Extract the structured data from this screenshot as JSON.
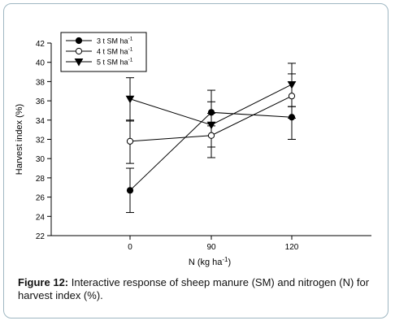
{
  "chart_data": {
    "type": "line",
    "x": [
      0,
      90,
      120
    ],
    "categories": [
      "0",
      "90",
      "120"
    ],
    "ylabel": "Harvest index (%)",
    "xlabel_main": "N (kg ha",
    "xlabel_sup": "-1",
    "xlabel_end": ")",
    "ylim": [
      22,
      42
    ],
    "yticks": [
      22,
      24,
      26,
      28,
      30,
      32,
      34,
      36,
      38,
      40,
      42
    ],
    "legend_position": "top-left",
    "series": [
      {
        "name": "3 t SM ha",
        "name_sup": "-1",
        "marker": "filled-circle",
        "values": [
          26.7,
          34.8,
          34.3
        ],
        "err_low": [
          24.4,
          33.4,
          32.0
        ],
        "err_high": [
          29.0,
          37.1,
          35.4
        ]
      },
      {
        "name": "4 t SM ha",
        "name_sup": "-1",
        "marker": "open-circle",
        "values": [
          31.8,
          32.4,
          36.5
        ],
        "err_low": [
          29.5,
          30.1,
          34.2
        ],
        "err_high": [
          34.0,
          34.7,
          38.8
        ]
      },
      {
        "name": "5 t SM ha",
        "name_sup": "-1",
        "marker": "filled-triangle-down",
        "values": [
          36.2,
          33.5,
          37.7
        ],
        "err_low": [
          33.9,
          31.2,
          35.4
        ],
        "err_high": [
          38.4,
          35.9,
          39.9
        ]
      }
    ]
  },
  "caption": {
    "label": "Figure 12:",
    "text": " Interactive response of sheep manure (SM) and nitrogen (N) for harvest index (%)."
  }
}
